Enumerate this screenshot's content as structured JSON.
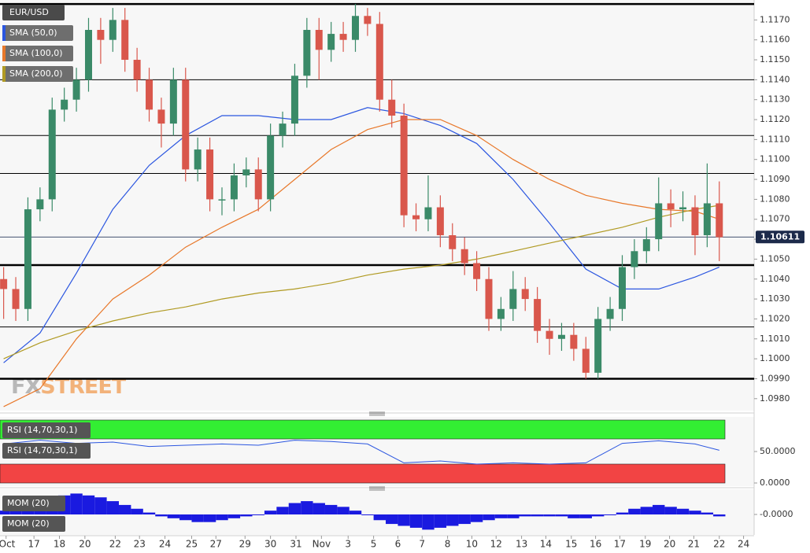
{
  "chart_data": {
    "type": "candlestick",
    "symbol": "EUR/USD",
    "xlim": [
      -0.3,
      62
    ],
    "ylim": [
      1.0974,
      1.118
    ],
    "yticks": [
      {
        "value": 1.098,
        "label": "1.0980"
      },
      {
        "value": 1.099,
        "label": "1.0990"
      },
      {
        "value": 1.1,
        "label": "1.1000"
      },
      {
        "value": 1.101,
        "label": "1.1010"
      },
      {
        "value": 1.102,
        "label": "1.1020"
      },
      {
        "value": 1.103,
        "label": "1.1030"
      },
      {
        "value": 1.104,
        "label": "1.1040"
      },
      {
        "value": 1.105,
        "label": "1.1050"
      },
      {
        "value": 1.106,
        "label": "1.1060"
      },
      {
        "value": 1.107,
        "label": "1.1070"
      },
      {
        "value": 1.108,
        "label": "1.1080"
      },
      {
        "value": 1.109,
        "label": "1.1090"
      },
      {
        "value": 1.11,
        "label": "1.1100"
      },
      {
        "value": 1.111,
        "label": "1.1110"
      },
      {
        "value": 1.112,
        "label": "1.1120"
      },
      {
        "value": 1.113,
        "label": "1.1130"
      },
      {
        "value": 1.114,
        "label": "1.1140"
      },
      {
        "value": 1.115,
        "label": "1.1150"
      },
      {
        "value": 1.116,
        "label": "1.1160"
      },
      {
        "value": 1.117,
        "label": "1.1170"
      }
    ],
    "xticks": [
      {
        "value": 0.2,
        "label": "Oct"
      },
      {
        "value": 2.5,
        "label": "17"
      },
      {
        "value": 4.6,
        "label": "18"
      },
      {
        "value": 6.7,
        "label": "20"
      },
      {
        "value": 9.2,
        "label": "22"
      },
      {
        "value": 11.2,
        "label": "23"
      },
      {
        "value": 13.3,
        "label": "24"
      },
      {
        "value": 15.5,
        "label": "25"
      },
      {
        "value": 17.5,
        "label": "27"
      },
      {
        "value": 19.9,
        "label": "29"
      },
      {
        "value": 22.0,
        "label": "30"
      },
      {
        "value": 24.1,
        "label": "31"
      },
      {
        "value": 26.2,
        "label": "Nov"
      },
      {
        "value": 28.4,
        "label": "3"
      },
      {
        "value": 30.5,
        "label": "5"
      },
      {
        "value": 32.5,
        "label": "6"
      },
      {
        "value": 34.5,
        "label": "7"
      },
      {
        "value": 36.6,
        "label": "8"
      },
      {
        "value": 38.6,
        "label": "10"
      },
      {
        "value": 40.6,
        "label": "12"
      },
      {
        "value": 42.7,
        "label": "13"
      },
      {
        "value": 44.7,
        "label": "14"
      },
      {
        "value": 46.8,
        "label": "15"
      },
      {
        "value": 48.8,
        "label": "16"
      },
      {
        "value": 50.8,
        "label": "17"
      },
      {
        "value": 52.9,
        "label": "19"
      },
      {
        "value": 54.9,
        "label": "20"
      },
      {
        "value": 56.9,
        "label": "21"
      },
      {
        "value": 59.0,
        "label": "22"
      },
      {
        "value": 61.0,
        "label": "24"
      }
    ],
    "up_color": "#3a8a68",
    "down_color": "#d9574c",
    "open": [
      1.104,
      1.1035,
      1.1025,
      1.1075,
      1.108,
      1.1125,
      1.113,
      1.114,
      1.1165,
      1.116,
      1.117,
      1.115,
      1.114,
      1.1125,
      1.1118,
      1.114,
      1.1095,
      1.1105,
      1.108,
      1.108,
      1.1092,
      1.1095,
      1.108,
      1.1112,
      1.1118,
      1.1142,
      1.1165,
      1.1155,
      1.1163,
      1.116,
      1.1172,
      1.1168,
      1.113,
      1.1122,
      1.1072,
      1.107,
      1.1076,
      1.1062,
      1.1055,
      1.1048,
      1.104,
      1.102,
      1.1025,
      1.1035,
      1.103,
      1.1014,
      1.101,
      1.1012,
      1.1005,
      1.0993,
      1.102,
      1.1025,
      1.1046,
      1.1054,
      1.106,
      1.1078,
      1.1075,
      1.1076,
      1.1062,
      1.1078
    ],
    "high": [
      1.1046,
      1.1041,
      1.1081,
      1.1086,
      1.1131,
      1.1136,
      1.1146,
      1.1171,
      1.1171,
      1.1176,
      1.1176,
      1.1156,
      1.1146,
      1.1131,
      1.1146,
      1.1146,
      1.1111,
      1.1111,
      1.1086,
      1.1098,
      1.1101,
      1.1101,
      1.1118,
      1.1124,
      1.1148,
      1.1171,
      1.1171,
      1.1169,
      1.1169,
      1.1178,
      1.1176,
      1.1174,
      1.114,
      1.1128,
      1.1078,
      1.1092,
      1.1082,
      1.1068,
      1.1061,
      1.1054,
      1.1046,
      1.1031,
      1.1044,
      1.1041,
      1.1036,
      1.102,
      1.1018,
      1.1018,
      1.1011,
      1.1026,
      1.1031,
      1.1052,
      1.106,
      1.1066,
      1.1091,
      1.1085,
      1.1084,
      1.1082,
      1.1098,
      1.1089
    ],
    "low": [
      1.102,
      1.1019,
      1.1019,
      1.1069,
      1.1074,
      1.1119,
      1.1124,
      1.1134,
      1.1148,
      1.1154,
      1.1144,
      1.1134,
      1.1119,
      1.1106,
      1.1112,
      1.1089,
      1.1089,
      1.1074,
      1.1072,
      1.1074,
      1.1086,
      1.1074,
      1.1074,
      1.1106,
      1.1112,
      1.1136,
      1.114,
      1.1149,
      1.1154,
      1.1154,
      1.1162,
      1.1124,
      1.1116,
      1.1066,
      1.1064,
      1.1064,
      1.1056,
      1.1049,
      1.1042,
      1.1034,
      1.1014,
      1.1014,
      1.1019,
      1.1024,
      1.1008,
      1.1002,
      1.1004,
      1.0999,
      1.099,
      1.099,
      1.1014,
      1.1019,
      1.104,
      1.1048,
      1.1054,
      1.1066,
      1.1069,
      1.1052,
      1.1056,
      1.1049
    ],
    "close": [
      1.1035,
      1.1025,
      1.1075,
      1.108,
      1.1125,
      1.113,
      1.114,
      1.1165,
      1.116,
      1.117,
      1.115,
      1.114,
      1.1125,
      1.1118,
      1.114,
      1.1095,
      1.1105,
      1.108,
      1.108,
      1.1092,
      1.1095,
      1.108,
      1.1112,
      1.1118,
      1.1142,
      1.1165,
      1.1155,
      1.1163,
      1.116,
      1.1172,
      1.1168,
      1.113,
      1.1122,
      1.1072,
      1.107,
      1.1076,
      1.1062,
      1.1055,
      1.1048,
      1.104,
      1.102,
      1.1025,
      1.1035,
      1.103,
      1.1014,
      1.101,
      1.1012,
      1.1005,
      1.0993,
      1.102,
      1.1025,
      1.1046,
      1.1054,
      1.106,
      1.1078,
      1.1075,
      1.1076,
      1.1062,
      1.1078,
      1.1061
    ],
    "series": [
      {
        "name": "SMA (50,0)",
        "color": "#2b56e0",
        "x": [
          0,
          3,
          6,
          9,
          12,
          15,
          18,
          21,
          24,
          27,
          30,
          33,
          36,
          39,
          42,
          45,
          48,
          51,
          54,
          57,
          59
        ],
        "values": [
          1.0998,
          1.1013,
          1.1043,
          1.1075,
          1.1097,
          1.1112,
          1.1122,
          1.1122,
          1.112,
          1.112,
          1.1126,
          1.1123,
          1.1117,
          1.1108,
          1.109,
          1.1068,
          1.1045,
          1.1035,
          1.1035,
          1.1041,
          1.1046
        ]
      },
      {
        "name": "SMA (100,0)",
        "color": "#e8782a",
        "x": [
          0,
          3,
          6,
          9,
          12,
          15,
          18,
          21,
          24,
          27,
          30,
          33,
          36,
          39,
          42,
          45,
          48,
          51,
          54,
          57,
          59
        ],
        "values": [
          1.0976,
          1.0985,
          1.101,
          1.103,
          1.1042,
          1.1056,
          1.1066,
          1.1075,
          1.109,
          1.1105,
          1.1115,
          1.112,
          1.112,
          1.1112,
          1.11,
          1.109,
          1.1082,
          1.1078,
          1.1075,
          1.1074,
          1.107
        ]
      },
      {
        "name": "SMA (200,0)",
        "color": "#b09a22",
        "x": [
          0,
          3,
          6,
          9,
          12,
          15,
          18,
          21,
          24,
          27,
          30,
          33,
          36,
          39,
          42,
          45,
          48,
          51,
          54,
          57,
          59
        ],
        "values": [
          1.1,
          1.1008,
          1.1014,
          1.1019,
          1.1023,
          1.1026,
          1.103,
          1.1033,
          1.1035,
          1.1038,
          1.1042,
          1.1045,
          1.1047,
          1.105,
          1.1054,
          1.1058,
          1.1062,
          1.1066,
          1.1071,
          1.1075,
          1.1077
        ]
      }
    ],
    "levels": [
      {
        "value": 1.1178,
        "style": "thick"
      },
      {
        "value": 1.114,
        "style": "thin"
      },
      {
        "value": 1.1112,
        "style": "thin"
      },
      {
        "value": 1.1093,
        "style": "thin"
      },
      {
        "value": 1.1047,
        "style": "thick"
      },
      {
        "value": 1.1016,
        "style": "thin"
      },
      {
        "value": 1.099,
        "style": "thick"
      }
    ],
    "last_price": {
      "value": 1.10611,
      "label": "1.10611"
    },
    "watermark": [
      "FX",
      "STREET"
    ],
    "rsi": {
      "labels": [
        "RSI (14,70,30,1)",
        "RSI (14,70,30,1)"
      ],
      "color": "#2b56e0",
      "ylim": [
        0,
        100
      ],
      "yticks": [
        {
          "value": 50,
          "label": "50.0000"
        },
        {
          "value": 0,
          "label": "0.0000"
        }
      ],
      "overbought": 70,
      "oversold": 30,
      "x": [
        0,
        3,
        6,
        9,
        12,
        15,
        18,
        21,
        24,
        27,
        30,
        33,
        36,
        39,
        42,
        45,
        48,
        51,
        54,
        57,
        59
      ],
      "values": [
        62,
        68,
        63,
        65,
        58,
        60,
        62,
        60,
        68,
        66,
        62,
        32,
        35,
        30,
        32,
        30,
        32,
        63,
        67,
        62,
        52
      ]
    },
    "mom": {
      "labels": [
        "MOM (20)",
        "MOM (20)"
      ],
      "color": "#1a1ae0",
      "ylim": [
        -0.012,
        0.012
      ],
      "yticks": [
        {
          "value": 0,
          "label": "-0.0000"
        }
      ],
      "values": [
        0.002,
        0.004,
        0.006,
        0.008,
        0.009,
        0.01,
        0.011,
        0.01,
        0.009,
        0.007,
        0.005,
        0.003,
        0.001,
        -0.001,
        -0.002,
        -0.003,
        -0.004,
        -0.004,
        -0.003,
        -0.002,
        -0.001,
        0.0,
        0.002,
        0.004,
        0.006,
        0.007,
        0.006,
        0.005,
        0.004,
        0.002,
        0.0,
        -0.003,
        -0.005,
        -0.006,
        -0.007,
        -0.008,
        -0.007,
        -0.006,
        -0.005,
        -0.004,
        -0.003,
        -0.002,
        -0.002,
        -0.001,
        -0.001,
        -0.001,
        -0.001,
        -0.002,
        -0.002,
        -0.001,
        0.0,
        0.001,
        0.003,
        0.004,
        0.005,
        0.004,
        0.003,
        0.002,
        0.001,
        -0.001
      ]
    }
  }
}
